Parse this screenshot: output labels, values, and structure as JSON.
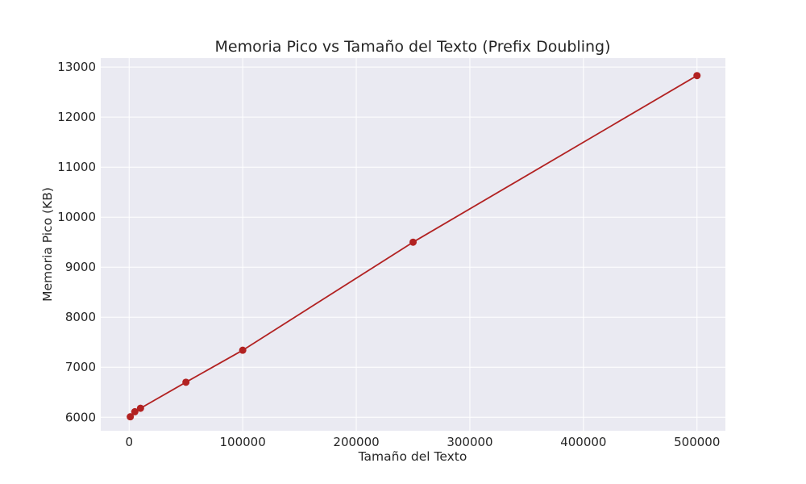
{
  "chart_data": {
    "type": "line",
    "title": "Memoria Pico vs Tamaño del Texto (Prefix Doubling)",
    "xlabel": "Tamaño del Texto",
    "ylabel": "Memoria Pico (KB)",
    "xlim": [
      -25000,
      525000
    ],
    "ylim": [
      5730,
      13180
    ],
    "x_ticks": [
      0,
      100000,
      200000,
      300000,
      400000,
      500000
    ],
    "y_ticks": [
      6000,
      7000,
      8000,
      9000,
      10000,
      11000,
      12000,
      13000
    ],
    "grid": true,
    "legend": "none",
    "series": [
      {
        "color": "#b22222",
        "marker": "circle",
        "x": [
          1000,
          5000,
          10000,
          50000,
          100000,
          250000,
          500000
        ],
        "y": [
          6010,
          6110,
          6180,
          6700,
          7340,
          9500,
          12830
        ]
      }
    ]
  }
}
